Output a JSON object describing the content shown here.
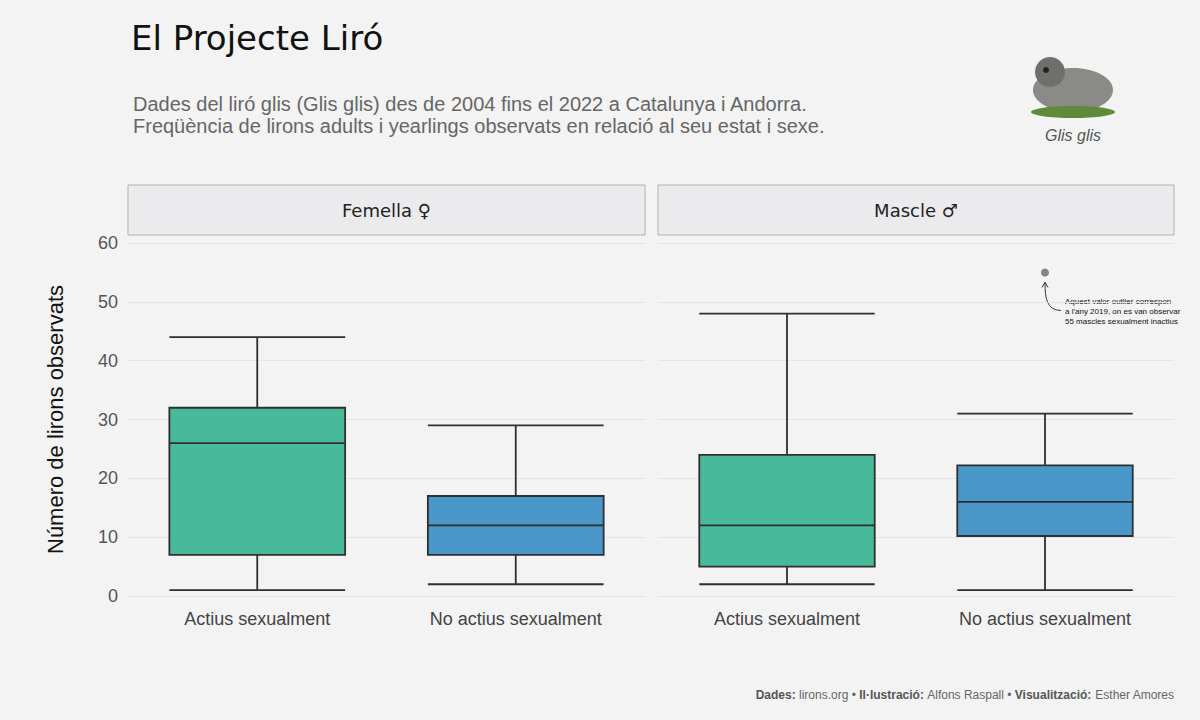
{
  "chart_data": {
    "type": "boxplot",
    "title": "El Projecte Liró",
    "subtitle": [
      "Dades del liró glis (Glis glis) des de 2004 fins el 2022 a Catalunya i Andorra.",
      "Freqüència de lirons adults i yearlings observats en relació al seu estat i sexe."
    ],
    "image_caption": "Glis glis",
    "y_label": "Número de lirons observats",
    "ylim": [
      0,
      60
    ],
    "yticks": [
      0,
      10,
      20,
      30,
      40,
      50,
      60
    ],
    "grid": true,
    "categories": [
      "Actius sexualment",
      "No actius sexualment"
    ],
    "colors": [
      "#48b99a",
      "#4a98c9"
    ],
    "panels": [
      {
        "title": "Femella ♀",
        "boxes": [
          {
            "min": 1,
            "q1": 7,
            "median": 26,
            "q3": 32,
            "max": 44
          },
          {
            "min": 2,
            "q1": 7,
            "median": 12,
            "q3": 17,
            "max": 29
          }
        ],
        "outliers": []
      },
      {
        "title": "Mascle ♂",
        "boxes": [
          {
            "min": 2,
            "q1": 5,
            "median": 12,
            "q3": 24,
            "max": 48
          },
          {
            "min": 1,
            "q1": 10.2,
            "median": 16,
            "q3": 22.2,
            "max": 31
          }
        ],
        "outliers": [
          {
            "category": "No actius sexualment",
            "value": 55
          }
        ]
      }
    ],
    "annotation": {
      "lines": [
        "Aquest valor outlier correspon",
        "a l'any 2019, on es van observar",
        "55 mascles sexualment inactius"
      ]
    },
    "credits": [
      {
        "label": "Dades:",
        "text": "lirons.org"
      },
      {
        "label": "Il·lustració:",
        "text": "Alfons Raspall"
      },
      {
        "label": "Visualització:",
        "text": "Esther Amores"
      }
    ],
    "credits_separator": "•"
  }
}
